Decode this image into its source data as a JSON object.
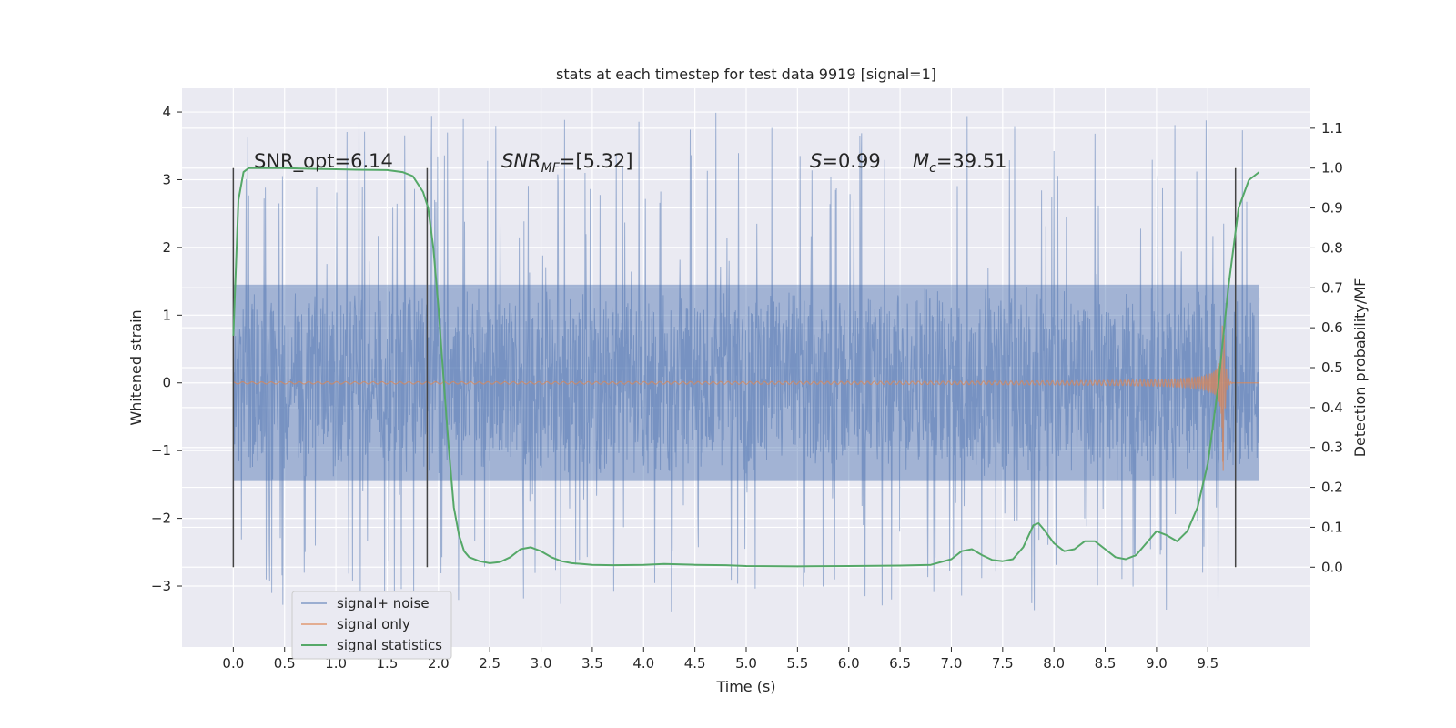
{
  "chart_data": {
    "type": "line",
    "title": "stats at each timestep for test data 9919 [signal=1]",
    "xlabel": "Time (s)",
    "ylabel": "Whitened strain",
    "ylabel_right": "Detection probability/MF",
    "xlim": [
      -0.5,
      10.5
    ],
    "ylim": [
      -3.9,
      4.35
    ],
    "ylim_right": [
      -0.2,
      1.2
    ],
    "x_ticks": [
      "0.0",
      "0.5",
      "1.0",
      "1.5",
      "2.0",
      "2.5",
      "3.0",
      "3.5",
      "4.0",
      "4.5",
      "5.0",
      "5.5",
      "6.0",
      "6.5",
      "7.0",
      "7.5",
      "8.0",
      "8.5",
      "9.0",
      "9.5"
    ],
    "x_tick_values": [
      0.0,
      0.5,
      1.0,
      1.5,
      2.0,
      2.5,
      3.0,
      3.5,
      4.0,
      4.5,
      5.0,
      5.5,
      6.0,
      6.5,
      7.0,
      7.5,
      8.0,
      8.5,
      9.0,
      9.5
    ],
    "y_ticks": [
      "4",
      "3",
      "2",
      "1",
      "0",
      "−1",
      "−2",
      "−3"
    ],
    "y_tick_values": [
      4,
      3,
      2,
      1,
      0,
      -1,
      -2,
      -3
    ],
    "y_right_ticks": [
      "1.1",
      "1.0",
      "0.9",
      "0.8",
      "0.7",
      "0.6",
      "0.5",
      "0.4",
      "0.3",
      "0.2",
      "0.1",
      "0.0"
    ],
    "y_right_tick_values": [
      1.1,
      1.0,
      0.9,
      0.8,
      0.7,
      0.6,
      0.5,
      0.4,
      0.3,
      0.2,
      0.1,
      0.0
    ],
    "grid": true,
    "legend_position": "bottom-left",
    "series": [
      {
        "name": "signal+ noise",
        "color": "#4c72b0",
        "axis": "left",
        "kind": "noise",
        "x_range": [
          0.0,
          10.0
        ],
        "core_amplitude": 1.45,
        "peak_range": [
          -3.4,
          4.05
        ]
      },
      {
        "name": "signal only",
        "color": "#dd8452",
        "axis": "left",
        "kind": "chirp",
        "x_range": [
          0.0,
          10.0
        ],
        "merger_time": 9.65,
        "peak_amplitude": 1.4
      },
      {
        "name": "signal statistics",
        "color": "#55a868",
        "axis": "right",
        "x": [
          0.0,
          0.05,
          0.1,
          0.15,
          0.2,
          0.3,
          0.5,
          0.8,
          1.0,
          1.2,
          1.5,
          1.65,
          1.75,
          1.8,
          1.85,
          1.9,
          1.95,
          2.0,
          2.05,
          2.1,
          2.15,
          2.2,
          2.25,
          2.3,
          2.4,
          2.5,
          2.6,
          2.7,
          2.8,
          2.9,
          3.0,
          3.1,
          3.2,
          3.3,
          3.4,
          3.5,
          3.7,
          4.0,
          4.2,
          4.5,
          4.8,
          5.0,
          5.5,
          6.0,
          6.5,
          6.8,
          7.0,
          7.1,
          7.2,
          7.3,
          7.4,
          7.5,
          7.6,
          7.7,
          7.8,
          7.85,
          7.9,
          8.0,
          8.1,
          8.2,
          8.3,
          8.4,
          8.5,
          8.6,
          8.7,
          8.8,
          8.9,
          9.0,
          9.1,
          9.2,
          9.3,
          9.4,
          9.5,
          9.6,
          9.7,
          9.8,
          9.9,
          10.0
        ],
        "values": [
          0.58,
          0.92,
          0.99,
          1.0,
          1.0,
          1.0,
          1.0,
          0.998,
          0.997,
          0.996,
          0.995,
          0.99,
          0.98,
          0.96,
          0.94,
          0.9,
          0.8,
          0.65,
          0.47,
          0.3,
          0.15,
          0.08,
          0.04,
          0.025,
          0.015,
          0.01,
          0.013,
          0.025,
          0.045,
          0.05,
          0.04,
          0.025,
          0.015,
          0.01,
          0.008,
          0.006,
          0.005,
          0.006,
          0.008,
          0.006,
          0.005,
          0.003,
          0.002,
          0.003,
          0.004,
          0.006,
          0.02,
          0.04,
          0.045,
          0.03,
          0.018,
          0.015,
          0.02,
          0.05,
          0.105,
          0.11,
          0.095,
          0.06,
          0.04,
          0.045,
          0.065,
          0.065,
          0.045,
          0.025,
          0.02,
          0.03,
          0.06,
          0.09,
          0.08,
          0.065,
          0.09,
          0.15,
          0.26,
          0.45,
          0.7,
          0.9,
          0.97,
          0.99
        ]
      }
    ],
    "vertical_markers": {
      "x": [
        0.0,
        1.89,
        9.77
      ],
      "range_right": [
        0.0,
        1.0
      ],
      "color": "#444444"
    },
    "annotations": [
      {
        "text": "SNR_opt=6.14"
      },
      {
        "base": "SNR",
        "sub": "MF",
        "rest": "=[5.32]"
      },
      {
        "base": "S",
        "sub": "",
        "rest": "=0.99"
      },
      {
        "base": "M",
        "sub": "c",
        "rest": "=39.51"
      }
    ],
    "colors": {
      "background": "#eaeaf2",
      "grid": "#ffffff"
    }
  }
}
